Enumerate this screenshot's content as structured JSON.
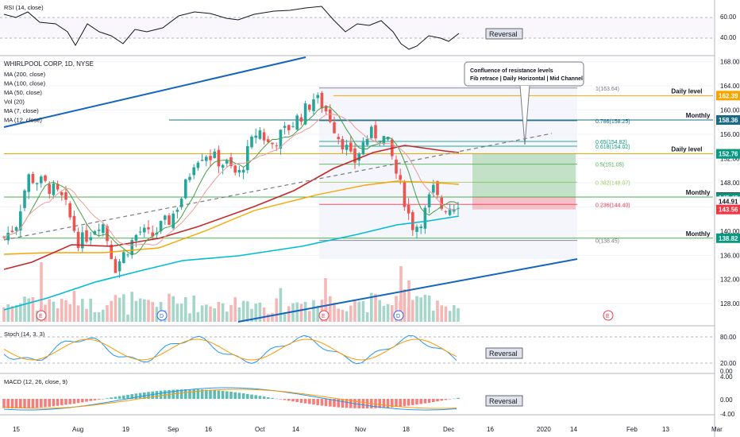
{
  "chart_data": {
    "type": "candlestick",
    "title": "WHIRLPOOL CORP, 1D, NYSE",
    "indicator_legend": [
      "MA (200, close)",
      "MA (100, close)",
      "MA (50, close)",
      "Vol (20)",
      "MA (7, close)",
      "MA (12, close)"
    ],
    "price_axis": {
      "range": [
        125,
        169
      ],
      "ticks": [
        "168.00",
        "164.00",
        "160.00",
        "156.00",
        "152.00",
        "148.00",
        "144.00",
        "140.00",
        "136.00",
        "132.00",
        "128.00"
      ]
    },
    "x_axis": {
      "labels": [
        "15",
        "Aug",
        "19",
        "Sep",
        "16",
        "Oct",
        "14",
        "Nov",
        "18",
        "Dec",
        "16",
        "2020",
        "14",
        "Feb",
        "13",
        "Mar"
      ]
    },
    "price_tags": [
      {
        "value": "162.39",
        "color": "#f7a600"
      },
      {
        "value": "158.36",
        "color": "#1a6985"
      },
      {
        "value": "152.78",
        "color": "#f7a600"
      },
      {
        "value": "152.76",
        "color": "#089981"
      },
      {
        "value": "145.62",
        "color": "#434651"
      },
      {
        "value": "145.48",
        "color": "#089981"
      },
      {
        "value": "144.91",
        "color": "#ffffff"
      },
      {
        "value": "143.56",
        "color": "#f23645"
      },
      {
        "value": "138.82",
        "color": "#089981"
      }
    ],
    "levels": [
      {
        "label": "Daily level",
        "value": 162.39,
        "color": "#f7a600"
      },
      {
        "label": "Monthly",
        "value": 158.36,
        "color": "#1a6985"
      },
      {
        "label": "Daily level",
        "value": 152.78,
        "color": "#f7a600"
      },
      {
        "label": "Monthly",
        "value": 145.62,
        "color": "#4caf50"
      },
      {
        "label": "Monthly",
        "value": 138.82,
        "color": "#4caf50"
      }
    ],
    "fib_levels": [
      {
        "label": "1(163.64)",
        "value": 163.64
      },
      {
        "label": "0.786(158.25)",
        "value": 158.25
      },
      {
        "label": "0.65(154.82)",
        "value": 154.82
      },
      {
        "label": "0.618(154.02)",
        "value": 154.02
      },
      {
        "label": "0.5(151.05)",
        "value": 151.05
      },
      {
        "label": "0.382(148.07)",
        "value": 148.07
      },
      {
        "label": "0.236(144.40)",
        "value": 144.4
      },
      {
        "label": "0(138.45)",
        "value": 138.45
      }
    ],
    "annotation": {
      "line1": "Confluence of resistance levels",
      "line2": "Fib retrace | Daily Horizontal | Mid Channel"
    },
    "event_markers": [
      "E",
      "D",
      "E",
      "D",
      "E"
    ],
    "panels": [
      {
        "title": "RSI (14, close)",
        "axis_ticks": [
          "60.00",
          "40.00"
        ],
        "note": "Reversal"
      },
      {
        "title": "Stoch (14, 3, 3)",
        "axis_ticks": [
          "80.00",
          "20.00",
          "0.00"
        ],
        "note": "Reversal"
      },
      {
        "title": "MACD (12, 26, close, 9)",
        "axis_ticks": [
          "4.00",
          "0.00",
          "-4.00"
        ],
        "note": "Reversal"
      }
    ],
    "colors": {
      "up": "#26a69a",
      "down": "#ef5350",
      "ma200": "#00bcd4",
      "ma100": "#f7a600",
      "ma50": "#c62828",
      "channel": "#1565c0"
    }
  }
}
